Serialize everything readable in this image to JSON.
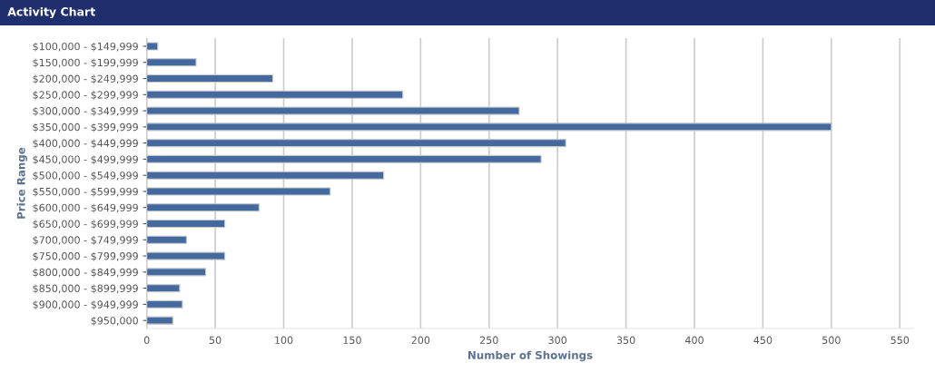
{
  "chart_data": {
    "type": "bar",
    "orientation": "horizontal",
    "title": "Activity Chart",
    "xlabel": "Number of Showings",
    "ylabel": "Price Range",
    "categories": [
      "$100,000 - $149,999",
      "$150,000 - $199,999",
      "$200,000 - $249,999",
      "$250,000 - $299,999",
      "$300,000 - $349,999",
      "$350,000 - $399,999",
      "$400,000 - $449,999",
      "$450,000 - $499,999",
      "$500,000 - $549,999",
      "$550,000 - $599,999",
      "$600,000 - $649,999",
      "$650,000 - $699,999",
      "$700,000 - $749,999",
      "$750,000 - $799,999",
      "$800,000 - $849,999",
      "$850,000 - $899,999",
      "$900,000 - $949,999",
      "$950,000"
    ],
    "values": [
      8,
      36,
      92,
      187,
      272,
      500,
      306,
      288,
      173,
      134,
      82,
      57,
      29,
      57,
      43,
      24,
      26,
      19
    ],
    "color": "#43699f",
    "xlim": [
      0,
      560
    ],
    "xticks": [
      0,
      50,
      100,
      150,
      200,
      250,
      300,
      350,
      400,
      450,
      500,
      550
    ],
    "grid": "x",
    "legend": false
  }
}
